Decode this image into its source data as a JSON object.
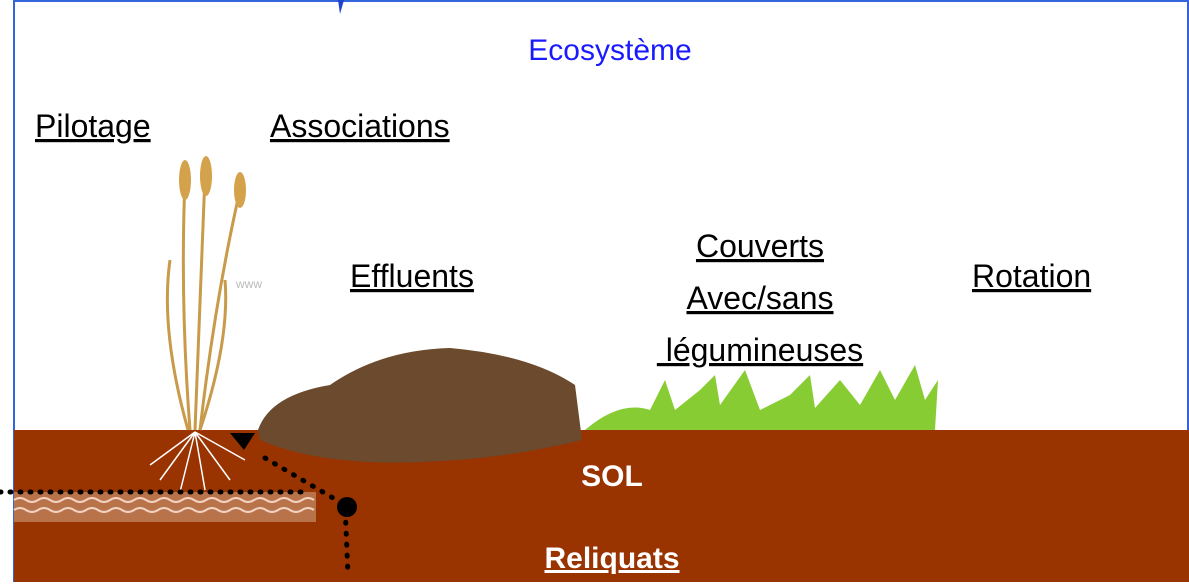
{
  "title": "Ecosystème",
  "levers": {
    "pilotage": "Pilotage",
    "associations": "Associations",
    "effluents": "Effluents",
    "couverts": [
      "Couverts",
      "Avec/sans",
      " légumineuses"
    ],
    "rotation": "Rotation"
  },
  "watermark": "www",
  "soil": {
    "label": "SOL",
    "reliquats": "Reliquats"
  }
}
